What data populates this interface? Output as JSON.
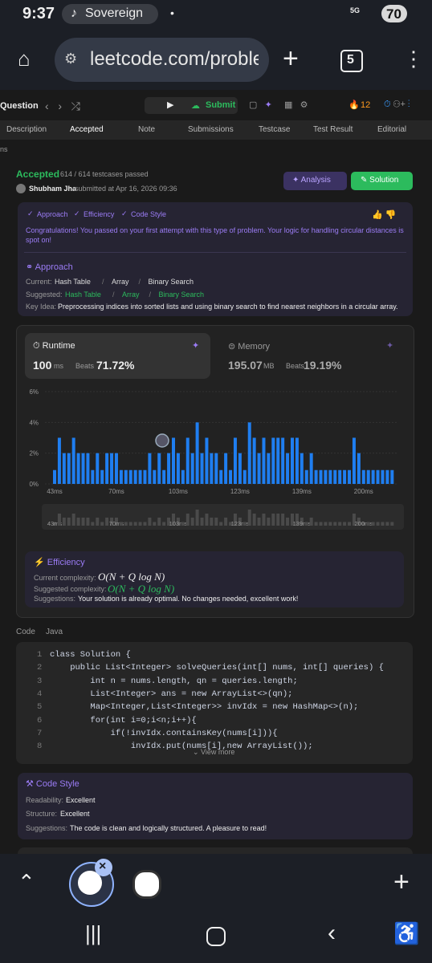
{
  "status_bar": {
    "time": "9:37",
    "media": "Sovereign",
    "network": "5G",
    "battery": "70"
  },
  "browser": {
    "url": "leetcode.com/proble",
    "tab_count": "5"
  },
  "toolbar": {
    "question": "Question",
    "submit": "Submit",
    "streak": "12"
  },
  "tabs": [
    "Description",
    "Accepted",
    "Note",
    "Submissions",
    "Testcase",
    "Test Result",
    "Editorial"
  ],
  "truncated_label": "ns",
  "submission": {
    "status": "Accepted",
    "cases": "614 / 614 testcases passed",
    "user": "Shubham Jha",
    "submitted": "submitted at Apr 16, 2026 09:36",
    "analysis": "Analysis",
    "solution": "Solution"
  },
  "feedback": {
    "tags": [
      "Approach",
      "Efficiency",
      "Code Style"
    ],
    "message": "Congratulations! You passed on your first attempt with this type of problem. Your logic for handling circular distances is spot on!",
    "approach": {
      "heading": "Approach",
      "current_label": "Current:",
      "current": [
        "Hash Table",
        "Array",
        "Binary Search"
      ],
      "suggested_label": "Suggested:",
      "suggested": [
        "Hash Table",
        "Array",
        "Binary Search"
      ],
      "key_idea_label": "Key Idea:",
      "key_idea": "Preprocessing indices into sorted lists and using binary search to find nearest neighbors in a circular array."
    }
  },
  "performance": {
    "runtime_label": "Runtime",
    "runtime": "100",
    "runtime_unit": "ms",
    "runtime_beats_label": "Beats",
    "runtime_beats": "71.72%",
    "memory_label": "Memory",
    "memory": "195.07",
    "memory_unit": "MB",
    "memory_beats_label": "Beats",
    "memory_beats": "19.19%"
  },
  "chart_data": {
    "type": "bar",
    "color": "#1f7ef0",
    "mini_color": "#4a4a4a",
    "categories": [
      "43ms",
      null,
      null,
      null,
      null,
      null,
      null,
      null,
      null,
      null,
      null,
      null,
      null,
      "70ms",
      null,
      null,
      null,
      null,
      null,
      null,
      null,
      null,
      null,
      null,
      null,
      null,
      "103ms",
      null,
      null,
      null,
      null,
      null,
      null,
      null,
      null,
      null,
      null,
      null,
      null,
      "123ms",
      null,
      null,
      null,
      null,
      null,
      null,
      null,
      null,
      null,
      null,
      null,
      null,
      "139ms",
      null,
      null,
      null,
      null,
      null,
      null,
      null,
      null,
      null,
      null,
      null,
      null,
      "200ms",
      null,
      null,
      null,
      null,
      null,
      null
    ],
    "values": [
      0.9,
      3,
      2,
      2,
      3,
      2,
      2,
      2,
      0.9,
      2,
      0.9,
      2,
      2,
      2,
      0.9,
      0.9,
      0.9,
      0.9,
      0.9,
      0.9,
      2,
      0.9,
      2,
      0.9,
      2,
      3,
      2,
      0.9,
      3,
      2,
      4,
      2,
      3,
      2,
      2,
      0.9,
      2,
      0.9,
      3,
      2,
      0.9,
      4,
      3,
      2,
      3,
      2,
      3,
      3,
      3,
      2,
      3,
      3,
      2,
      0.9,
      2,
      0.9,
      0.9,
      0.9,
      0.9,
      0.9,
      0.9,
      0.9,
      0.9,
      3,
      2,
      0.9,
      0.9,
      0.9,
      0.9,
      0.9,
      0.9,
      0.9
    ],
    "ylim": [
      0,
      6
    ],
    "yticks": [
      {
        "value": 0,
        "label": "0%"
      },
      {
        "value": 2,
        "label": "2%"
      },
      {
        "value": 4,
        "label": "4%"
      },
      {
        "value": 6,
        "label": "6%"
      }
    ]
  },
  "efficiency": {
    "heading": "Efficiency",
    "current_label": "Current complexity:",
    "current": "O(N + Q log N)",
    "suggested_label": "Suggested complexity:",
    "suggested": "O(N + Q log N)",
    "suggestions_label": "Suggestions:",
    "suggestions": "Your solution is already optimal. No changes needed, excellent work!"
  },
  "code": {
    "header": "Code",
    "language": "Java",
    "lines": [
      [
        1,
        "class Solution {"
      ],
      [
        2,
        "    public List<Integer> solveQueries(int[] nums, int[] queries) {"
      ],
      [
        3,
        "        int n = nums.length, qn = queries.length;"
      ],
      [
        4,
        "        List<Integer> ans = new ArrayList<>(qn);"
      ],
      [
        5,
        "        Map<Integer,List<Integer>> invIdx = new HashMap<>(n);"
      ],
      [
        6,
        "        for(int i=0;i<n;i++){"
      ],
      [
        7,
        "            if(!invIdx.containsKey(nums[i])){"
      ],
      [
        8,
        "                invIdx.put(nums[i],new ArrayList());"
      ]
    ],
    "view_more": "View more"
  },
  "code_style": {
    "heading": "Code Style",
    "readability_label": "Readability:",
    "readability": "Excellent",
    "structure_label": "Structure:",
    "structure": "Excellent",
    "suggestions_label": "Suggestions:",
    "suggestions": "The code is clean and logically structured. A pleasure to read!"
  }
}
